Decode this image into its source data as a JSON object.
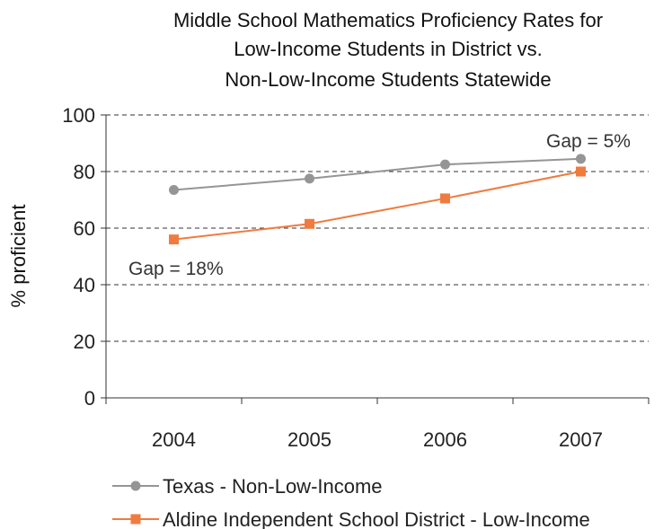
{
  "chart_data": {
    "type": "line",
    "title_lines": [
      "Middle School Mathematics Proficiency Rates for",
      "Low-Income Students in District vs.",
      "Non-Low-Income Students Statewide"
    ],
    "xlabel": "",
    "ylabel": "% proficient",
    "x": [
      "2004",
      "2005",
      "2006",
      "2007"
    ],
    "ylim": [
      0,
      100
    ],
    "yticks": [
      "0",
      "20",
      "40",
      "60",
      "80",
      "100"
    ],
    "grid": "horizontal dashed",
    "series": [
      {
        "name": "Texas - Non-Low-Income",
        "values": [
          73.5,
          77.5,
          82.5,
          84.5
        ],
        "color": "#959595",
        "marker": "circle"
      },
      {
        "name": "Aldine Independent School District - Low-Income",
        "values": [
          56,
          61.5,
          70.5,
          80
        ],
        "color": "#f07b3f",
        "marker": "square"
      }
    ],
    "annotations": [
      {
        "text": "Gap = 18%",
        "near": "2004"
      },
      {
        "text": "Gap = 5%",
        "near": "2007"
      }
    ],
    "legend_position": "bottom-left"
  }
}
